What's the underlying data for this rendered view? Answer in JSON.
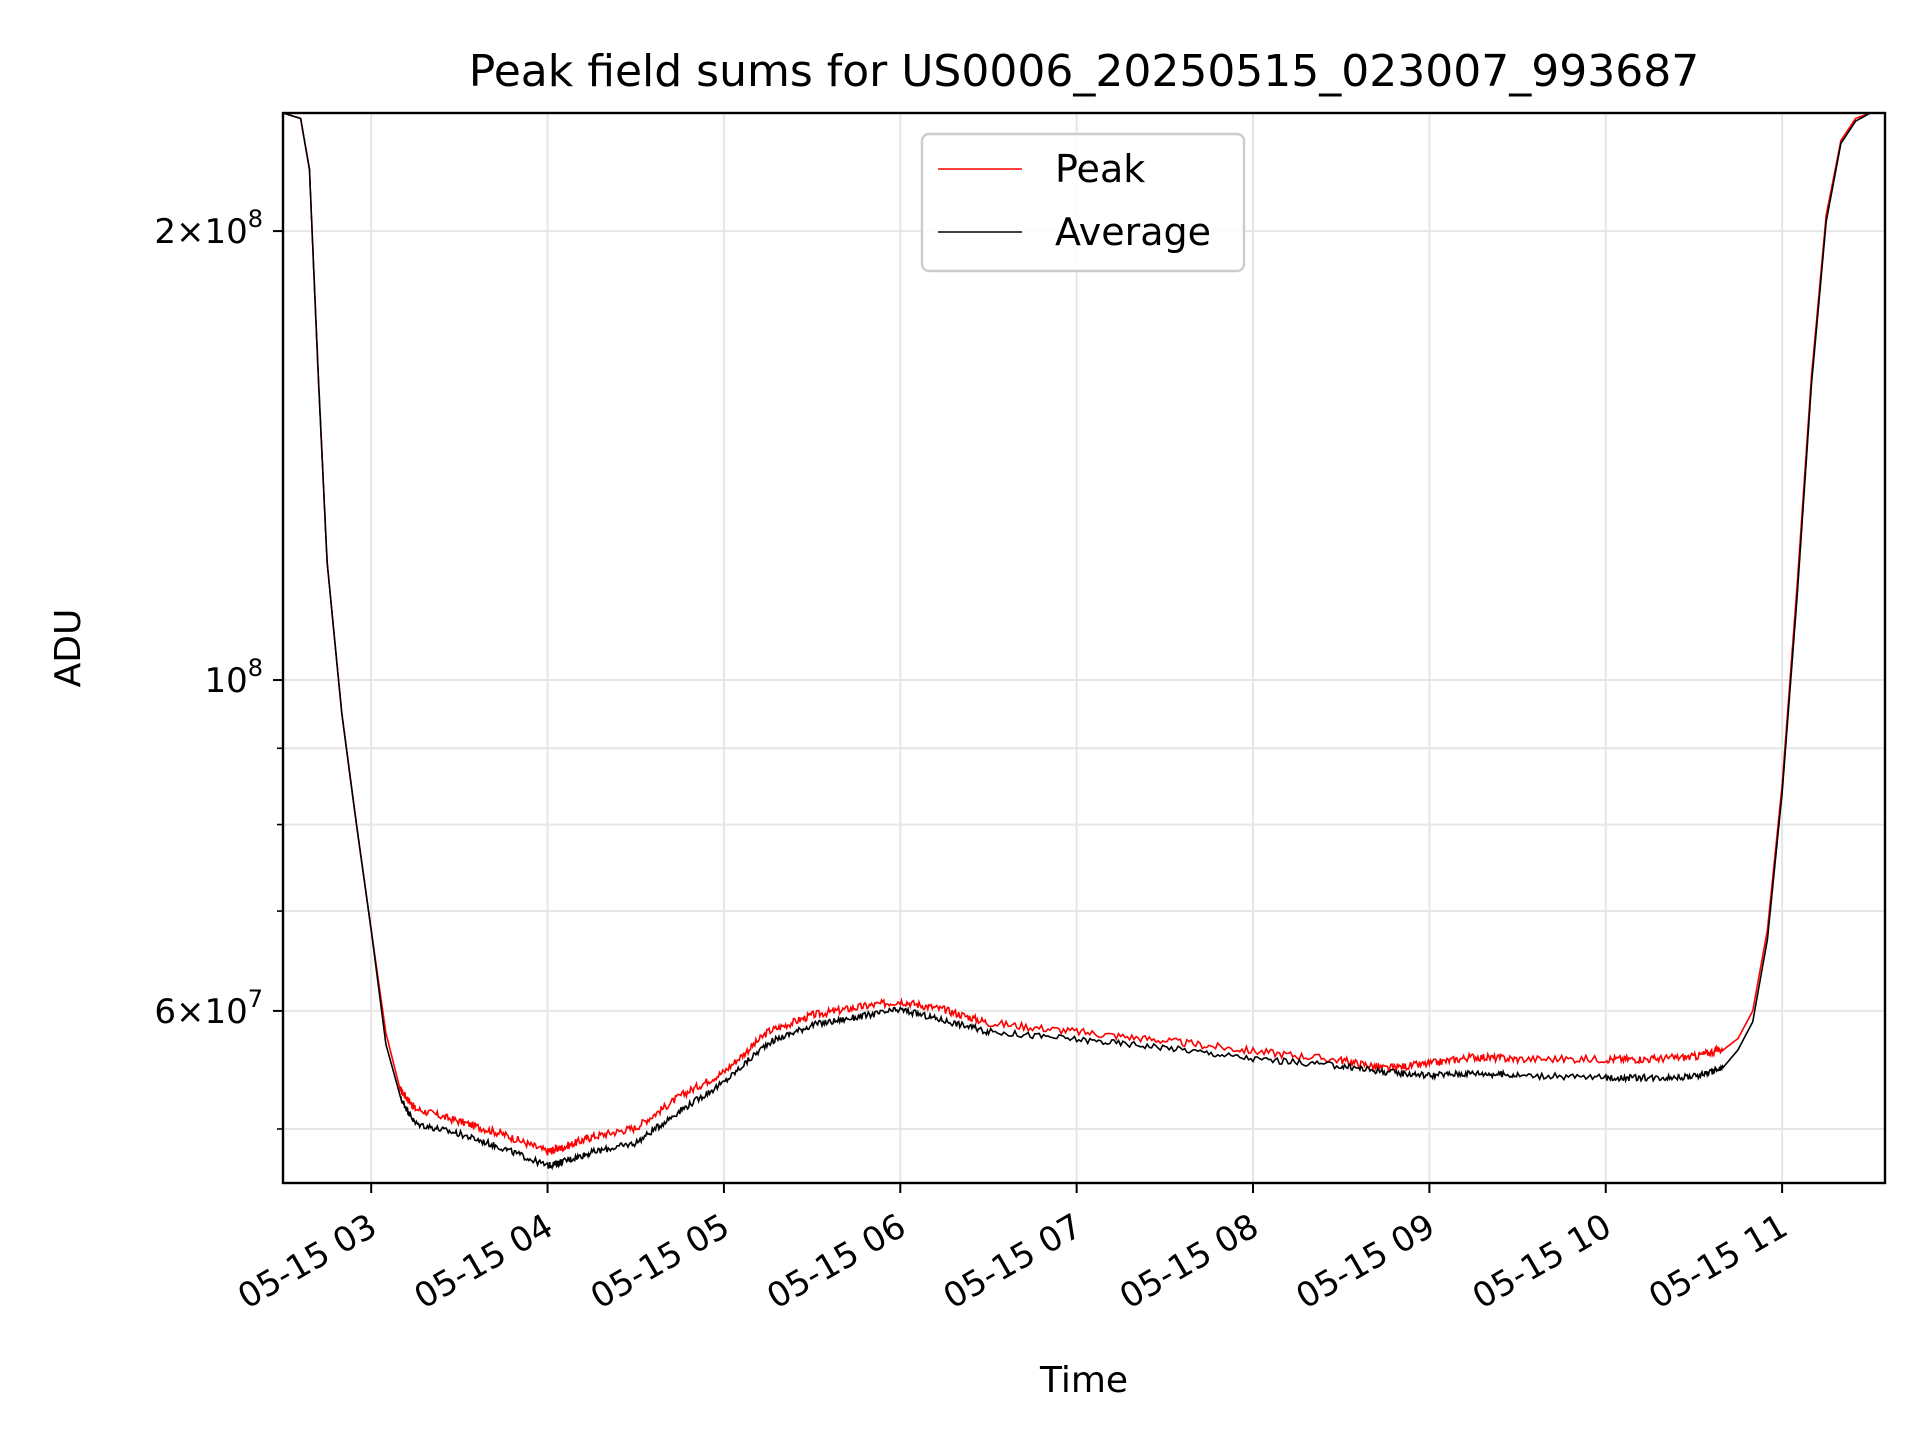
{
  "chart_data": {
    "type": "line",
    "title": "Peak field sums for US0006_20250515_023007_993687",
    "xlabel": "Time",
    "ylabel": "ADU",
    "yscale": "log",
    "xlim": [
      "2025-05-15 02:30",
      "2025-05-15 11:35"
    ],
    "ylim": [
      46000000,
      240000000
    ],
    "grid": true,
    "legend_position": "top-center",
    "x_ticks": [
      "05-15 03",
      "05-15 04",
      "05-15 05",
      "05-15 06",
      "05-15 07",
      "05-15 08",
      "05-15 09",
      "05-15 10",
      "05-15 11"
    ],
    "y_ticks": [
      {
        "value": 200000000,
        "mantissa": "2",
        "exponent": "8"
      },
      {
        "value": 100000000,
        "mantissa": "",
        "exponent": "8"
      },
      {
        "value": 60000000,
        "mantissa": "6",
        "exponent": "7"
      }
    ],
    "y_minor_ticks": [
      50000000,
      70000000,
      80000000,
      90000000
    ],
    "x": [
      "2025-05-15 02:30",
      "2025-05-15 02:36",
      "2025-05-15 02:39",
      "2025-05-15 02:42",
      "2025-05-15 02:45",
      "2025-05-15 02:50",
      "2025-05-15 02:55",
      "2025-05-15 03:00",
      "2025-05-15 03:05",
      "2025-05-15 03:10",
      "2025-05-15 03:15",
      "2025-05-15 03:30",
      "2025-05-15 03:45",
      "2025-05-15 04:00",
      "2025-05-15 04:05",
      "2025-05-15 04:15",
      "2025-05-15 04:30",
      "2025-05-15 04:45",
      "2025-05-15 05:00",
      "2025-05-15 05:15",
      "2025-05-15 05:30",
      "2025-05-15 05:45",
      "2025-05-15 06:00",
      "2025-05-15 06:15",
      "2025-05-15 06:30",
      "2025-05-15 07:00",
      "2025-05-15 07:30",
      "2025-05-15 08:00",
      "2025-05-15 08:30",
      "2025-05-15 08:45",
      "2025-05-15 09:00",
      "2025-05-15 09:15",
      "2025-05-15 09:30",
      "2025-05-15 10:00",
      "2025-05-15 10:15",
      "2025-05-15 10:30",
      "2025-05-15 10:40",
      "2025-05-15 10:45",
      "2025-05-15 10:50",
      "2025-05-15 10:55",
      "2025-05-15 11:00",
      "2025-05-15 11:05",
      "2025-05-15 11:10",
      "2025-05-15 11:15",
      "2025-05-15 11:20",
      "2025-05-15 11:25",
      "2025-05-15 11:30",
      "2025-05-15 11:35"
    ],
    "series": [
      {
        "name": "Peak",
        "color": "#ff0000",
        "values": [
          240000000,
          238000000,
          220000000,
          160000000,
          120000000,
          95000000,
          80000000,
          68000000,
          58000000,
          53000000,
          51500000,
          50500000,
          49500000,
          48200000,
          48500000,
          49300000,
          50000000,
          52500000,
          54500000,
          58000000,
          59500000,
          60200000,
          60800000,
          60000000,
          58800000,
          58000000,
          57200000,
          56300000,
          55500000,
          54800000,
          55200000,
          55800000,
          55600000,
          55600000,
          55600000,
          55800000,
          56500000,
          57500000,
          60000000,
          68000000,
          85000000,
          115000000,
          160000000,
          205000000,
          230000000,
          238000000,
          240000000,
          240000000
        ]
      },
      {
        "name": "Average",
        "color": "#000000",
        "values": [
          240000000,
          238000000,
          220000000,
          160000000,
          120000000,
          95000000,
          80000000,
          68000000,
          57000000,
          52500000,
          50500000,
          49700000,
          48600000,
          47300000,
          47600000,
          48300000,
          49000000,
          51500000,
          53800000,
          57200000,
          58800000,
          59500000,
          60200000,
          59200000,
          58200000,
          57500000,
          56800000,
          55800000,
          55200000,
          54700000,
          54400000,
          54600000,
          54400000,
          54200000,
          54200000,
          54300000,
          55000000,
          56500000,
          59000000,
          67000000,
          84000000,
          113000000,
          158000000,
          203000000,
          229000000,
          237000000,
          240000000,
          240000000
        ]
      }
    ]
  }
}
